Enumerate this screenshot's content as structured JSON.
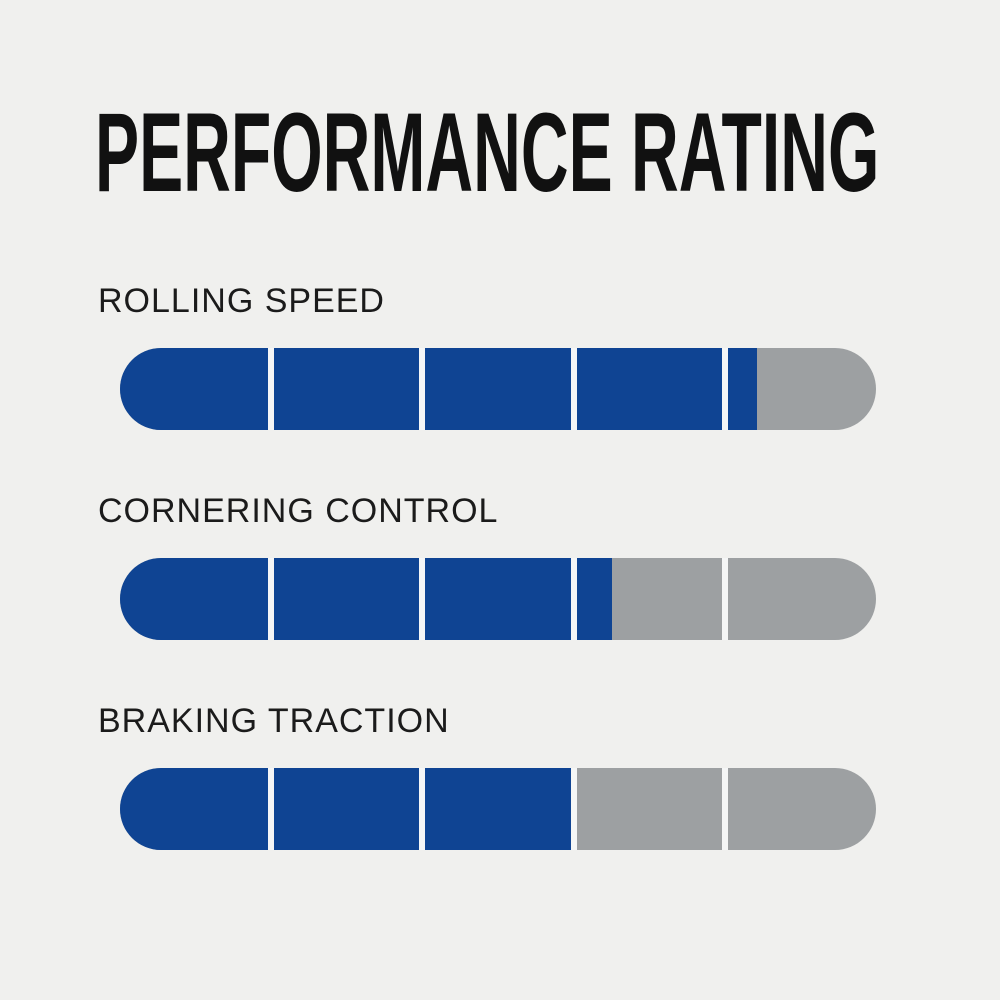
{
  "page": {
    "background": "#f0f0ee"
  },
  "title": "PERFORMANCE RATING",
  "chart_data": {
    "type": "bar",
    "title": "PERFORMANCE RATING",
    "categories": [
      "ROLLING SPEED",
      "CORNERING CONTROL",
      "BRAKING TRACTION"
    ],
    "values": [
      4.2,
      3.25,
      3.0
    ],
    "max_value": 5,
    "segments_per_bar": 5,
    "fill_percents": [
      84.3,
      65.1,
      60.3
    ],
    "orientation": "horizontal",
    "colors": {
      "filled": "#0f4493",
      "unfilled": "#9da0a2",
      "divider": "#f5f6f6",
      "background": "#f0f0ee",
      "text": "#1b1b1b"
    }
  }
}
